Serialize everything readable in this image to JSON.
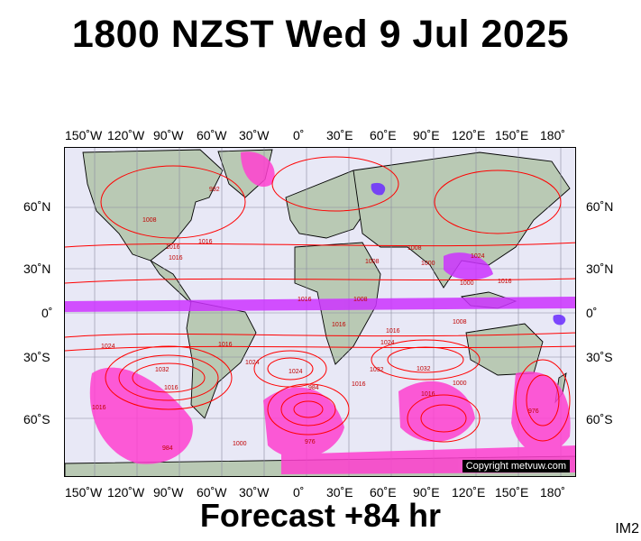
{
  "title": "1800 NZST Wed 9 Jul 2025",
  "footer": "Forecast +84 hr",
  "image_code": "IM2",
  "copyright": "Copyright metvuw.com",
  "lon_labels": [
    "150˚W",
    "120˚W",
    "90˚W",
    "60˚W",
    "30˚W",
    "0˚",
    "30˚E",
    "60˚E",
    "90˚E",
    "120˚E",
    "150˚E",
    "180˚"
  ],
  "lat_labels_left": [
    "60˚N",
    "30˚N",
    "0˚",
    "30˚S",
    "60˚S"
  ],
  "lat_labels_right": [
    "60˚N",
    "30˚N",
    "0˚",
    "30˚S",
    "60˚S"
  ],
  "isobar_labels": [
    "1016",
    "1016",
    "1008",
    "1016",
    "1016",
    "1024",
    "1032",
    "1016",
    "1008",
    "1024",
    "1032",
    "1016",
    "1016",
    "1008",
    "1024",
    "1000",
    "1032",
    "1016",
    "984",
    "976",
    "1000",
    "1016",
    "1008",
    "1000",
    "1008",
    "1016",
    "1024",
    "1016",
    "984",
    "1000",
    "992",
    "1024",
    "976",
    "1016"
  ],
  "colors": {
    "ocean": "#e8e8f6",
    "land": "#b9c9b4",
    "isobar": "#ff0000",
    "precip_light": "#ff3fd0",
    "precip_mid": "#cc33ff",
    "precip_heavy": "#6a2bff",
    "grid": "#8a8aa0"
  }
}
